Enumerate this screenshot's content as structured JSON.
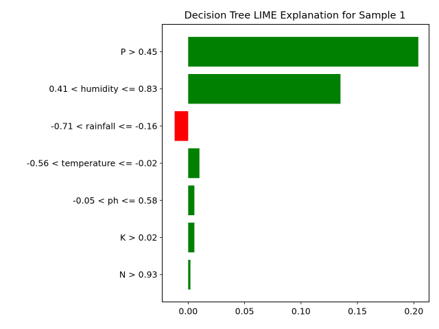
{
  "chart_data": {
    "type": "bar",
    "orientation": "horizontal",
    "title": "Decision Tree LIME Explanation for Sample 1",
    "xlabel": "",
    "ylabel": "",
    "xlim": [
      -0.023,
      0.2135
    ],
    "xticks": [
      0.0,
      0.05,
      0.1,
      0.15,
      0.2
    ],
    "xtick_labels": [
      "0.00",
      "0.05",
      "0.10",
      "0.15",
      "0.20"
    ],
    "categories": [
      "P > 0.45",
      "0.41 < humidity <= 0.83",
      "-0.71 < rainfall <= -0.16",
      "-0.56 < temperature <= -0.02",
      "-0.05 < ph <= 0.58",
      "K > 0.02",
      "N > 0.93"
    ],
    "values": [
      0.204,
      0.135,
      -0.012,
      0.01,
      0.0055,
      0.0055,
      0.002
    ],
    "colors": [
      "#008000",
      "#008000",
      "#ff0000",
      "#008000",
      "#008000",
      "#008000",
      "#008000"
    ],
    "grid": false,
    "legend": "none"
  }
}
